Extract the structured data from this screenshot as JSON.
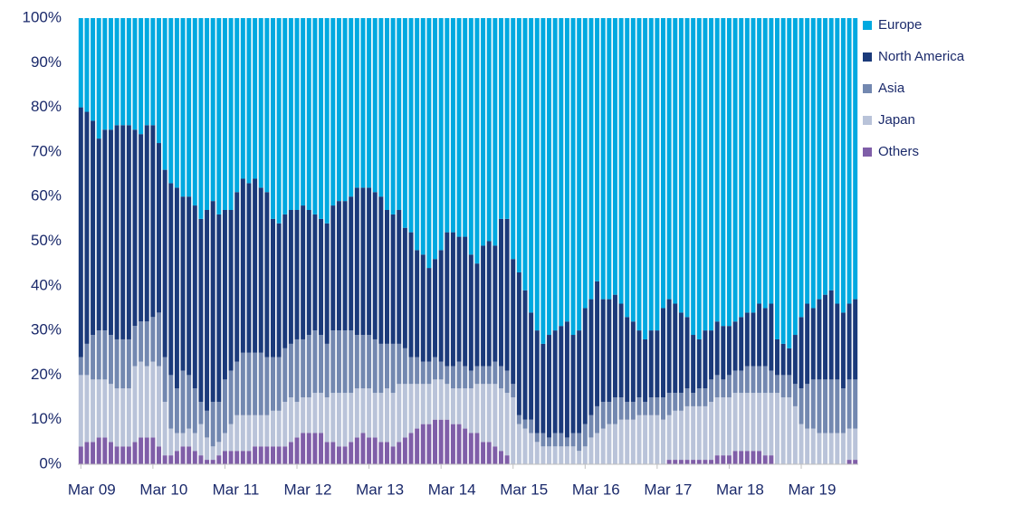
{
  "chart_data": {
    "type": "stacked_bar_100",
    "categories": [
      "Mar 09",
      null,
      null,
      null,
      null,
      null,
      null,
      null,
      null,
      null,
      null,
      null,
      "Mar 10",
      null,
      null,
      null,
      null,
      null,
      null,
      null,
      null,
      null,
      null,
      null,
      "Mar 11",
      null,
      null,
      null,
      null,
      null,
      null,
      null,
      null,
      null,
      null,
      null,
      "Mar 12",
      null,
      null,
      null,
      null,
      null,
      null,
      null,
      null,
      null,
      null,
      null,
      "Mar 13",
      null,
      null,
      null,
      null,
      null,
      null,
      null,
      null,
      null,
      null,
      null,
      "Mar 14",
      null,
      null,
      null,
      null,
      null,
      null,
      null,
      null,
      null,
      null,
      null,
      "Mar 15",
      null,
      null,
      null,
      null,
      null,
      null,
      null,
      null,
      null,
      null,
      null,
      "Mar 16",
      null,
      null,
      null,
      null,
      null,
      null,
      null,
      null,
      null,
      null,
      null,
      "Mar 17",
      null,
      null,
      null,
      null,
      null,
      null,
      null,
      null,
      null,
      null,
      null,
      "Mar 18",
      null,
      null,
      null,
      null,
      null,
      null,
      null,
      null,
      null,
      null,
      null,
      "Mar 19",
      null,
      null,
      null,
      null,
      null,
      null,
      null,
      null,
      null
    ],
    "series": [
      {
        "name": "Europe",
        "color": "#00a9e0",
        "values": [
          20,
          21,
          23,
          27,
          25,
          25,
          24,
          24,
          24,
          25,
          26,
          24,
          24,
          28,
          34,
          37,
          38,
          40,
          40,
          42,
          45,
          43,
          41,
          44,
          43,
          43,
          39,
          36,
          37,
          36,
          38,
          39,
          45,
          46,
          44,
          43,
          43,
          42,
          43,
          44,
          45,
          46,
          42,
          41,
          41,
          40,
          38,
          38,
          38,
          39,
          40,
          43,
          44,
          43,
          47,
          48,
          52,
          53,
          56,
          54,
          52,
          48,
          48,
          49,
          49,
          53,
          55,
          51,
          50,
          51,
          45,
          45,
          54,
          57,
          61,
          66,
          70,
          73,
          71,
          70,
          69,
          68,
          71,
          70,
          65,
          63,
          59,
          63,
          63,
          62,
          64,
          67,
          68,
          70,
          72,
          70,
          70,
          65,
          63,
          64,
          66,
          67,
          71,
          72,
          70,
          70,
          68,
          69,
          69,
          68,
          67,
          66,
          66,
          64,
          65,
          64,
          72,
          73,
          74,
          71,
          67,
          64,
          65,
          63,
          62,
          61,
          64,
          66,
          64,
          63
        ]
      },
      {
        "name": "North America",
        "color": "#1b3a7a",
        "values": [
          56,
          52,
          48,
          43,
          45,
          46,
          48,
          48,
          48,
          44,
          42,
          44,
          43,
          38,
          42,
          43,
          45,
          39,
          40,
          41,
          41,
          45,
          45,
          42,
          38,
          36,
          38,
          39,
          38,
          39,
          37,
          37,
          31,
          30,
          30,
          30,
          29,
          30,
          28,
          26,
          26,
          27,
          28,
          29,
          29,
          30,
          33,
          33,
          33,
          33,
          33,
          30,
          29,
          30,
          27,
          28,
          24,
          24,
          21,
          22,
          25,
          30,
          30,
          28,
          29,
          26,
          23,
          27,
          28,
          26,
          33,
          34,
          28,
          32,
          29,
          24,
          23,
          20,
          23,
          23,
          24,
          26,
          22,
          23,
          26,
          26,
          28,
          23,
          23,
          23,
          21,
          19,
          18,
          15,
          14,
          15,
          15,
          20,
          21,
          20,
          18,
          16,
          13,
          11,
          13,
          11,
          12,
          12,
          11,
          11,
          12,
          12,
          12,
          14,
          13,
          15,
          8,
          7,
          6,
          11,
          16,
          18,
          16,
          18,
          19,
          20,
          17,
          17,
          17,
          18
        ]
      },
      {
        "name": "Asia",
        "color": "#7388b0",
        "values": [
          4,
          7,
          10,
          11,
          11,
          11,
          11,
          11,
          11,
          9,
          9,
          10,
          10,
          12,
          10,
          12,
          10,
          14,
          12,
          10,
          5,
          6,
          10,
          9,
          12,
          12,
          12,
          14,
          14,
          14,
          14,
          13,
          12,
          12,
          12,
          12,
          14,
          13,
          14,
          14,
          13,
          12,
          14,
          14,
          14,
          14,
          12,
          12,
          12,
          12,
          11,
          10,
          11,
          9,
          8,
          6,
          6,
          5,
          5,
          5,
          4,
          4,
          5,
          6,
          5,
          4,
          4,
          4,
          4,
          5,
          5,
          5,
          3,
          2,
          2,
          3,
          2,
          3,
          2,
          3,
          3,
          2,
          3,
          4,
          5,
          5,
          6,
          6,
          5,
          6,
          5,
          4,
          4,
          4,
          3,
          4,
          4,
          5,
          5,
          4,
          4,
          4,
          3,
          4,
          4,
          5,
          5,
          4,
          5,
          5,
          5,
          6,
          6,
          6,
          6,
          5,
          4,
          5,
          5,
          5,
          8,
          10,
          11,
          12,
          12,
          12,
          12,
          10,
          11,
          11
        ]
      },
      {
        "name": "Japan",
        "color": "#b9c3d9",
        "values": [
          16,
          15,
          14,
          13,
          13,
          13,
          13,
          13,
          13,
          17,
          17,
          16,
          17,
          18,
          12,
          6,
          4,
          3,
          4,
          4,
          7,
          5,
          3,
          3,
          4,
          6,
          8,
          8,
          8,
          7,
          7,
          7,
          8,
          8,
          10,
          10,
          8,
          8,
          8,
          9,
          9,
          10,
          11,
          12,
          12,
          11,
          11,
          10,
          11,
          10,
          11,
          12,
          12,
          13,
          12,
          11,
          10,
          9,
          9,
          9,
          9,
          8,
          8,
          8,
          9,
          10,
          11,
          13,
          13,
          14,
          14,
          14,
          15,
          9,
          8,
          7,
          5,
          4,
          4,
          4,
          4,
          4,
          4,
          3,
          4,
          6,
          7,
          8,
          9,
          9,
          10,
          10,
          10,
          11,
          11,
          11,
          11,
          10,
          10,
          11,
          11,
          12,
          12,
          12,
          12,
          13,
          13,
          13,
          13,
          13,
          13,
          13,
          13,
          13,
          14,
          14,
          16,
          15,
          15,
          13,
          9,
          8,
          8,
          7,
          7,
          7,
          7,
          7,
          7,
          7
        ]
      },
      {
        "name": "Others",
        "color": "#7f5ea8",
        "values": [
          4,
          5,
          5,
          6,
          6,
          5,
          4,
          4,
          4,
          5,
          6,
          6,
          6,
          4,
          2,
          2,
          3,
          4,
          4,
          3,
          2,
          1,
          1,
          2,
          3,
          3,
          3,
          3,
          3,
          4,
          4,
          4,
          4,
          4,
          4,
          5,
          6,
          7,
          7,
          7,
          7,
          5,
          5,
          4,
          4,
          5,
          6,
          7,
          6,
          6,
          5,
          5,
          4,
          5,
          6,
          7,
          8,
          9,
          9,
          10,
          10,
          10,
          9,
          9,
          8,
          7,
          7,
          5,
          5,
          4,
          3,
          2,
          0,
          0,
          0,
          0,
          0,
          0,
          0,
          0,
          0,
          0,
          0,
          0,
          0,
          0,
          0,
          0,
          0,
          0,
          0,
          0,
          0,
          0,
          0,
          0,
          0,
          0,
          1,
          1,
          1,
          1,
          1,
          1,
          1,
          1,
          2,
          2,
          2,
          3,
          3,
          3,
          3,
          3,
          2,
          2,
          0,
          0,
          0,
          0,
          0,
          0,
          0,
          0,
          0,
          0,
          0,
          0,
          1,
          1
        ]
      }
    ],
    "ylim": [
      0,
      100
    ],
    "yticks": [
      {
        "value": 0,
        "label": "0%"
      },
      {
        "value": 10,
        "label": "10%"
      },
      {
        "value": 20,
        "label": "20%"
      },
      {
        "value": 30,
        "label": "30%"
      },
      {
        "value": 40,
        "label": "40%"
      },
      {
        "value": 50,
        "label": "50%"
      },
      {
        "value": 60,
        "label": "60%"
      },
      {
        "value": 70,
        "label": "70%"
      },
      {
        "value": 80,
        "label": "80%"
      },
      {
        "value": 90,
        "label": "90%"
      },
      {
        "value": 100,
        "label": "100%"
      }
    ],
    "legend": "right"
  }
}
